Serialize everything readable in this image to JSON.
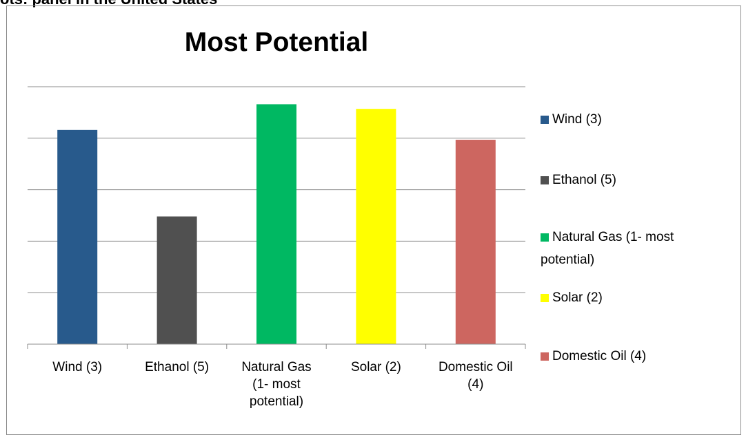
{
  "page": {
    "top_strip_text": "ots: panel in the United States"
  },
  "chart_data": {
    "type": "bar",
    "title": "Most Potential",
    "xlabel": "",
    "ylabel": "",
    "categories": [
      "Wind (3)",
      "Ethanol (5)",
      "Natural Gas (1- most potential)",
      "Solar (2)",
      "Domestic Oil (4)"
    ],
    "values": [
      4.16,
      2.48,
      4.66,
      4.57,
      3.97
    ],
    "colors": [
      "#285A8C",
      "#505050",
      "#00B862",
      "#FFFF00",
      "#CD6660"
    ],
    "ylim": [
      0,
      5
    ],
    "y_tick_labels_shown": false,
    "grid": true,
    "legend": "right",
    "series": [
      {
        "name": "Wind (3)",
        "color": "#285A8C"
      },
      {
        "name": "Ethanol (5)",
        "color": "#505050"
      },
      {
        "name": "Natural Gas (1- most potential)",
        "color": "#00B862"
      },
      {
        "name": "Solar (2)",
        "color": "#FFFF00"
      },
      {
        "name": "Domestic Oil (4)",
        "color": "#CD6660"
      }
    ]
  }
}
